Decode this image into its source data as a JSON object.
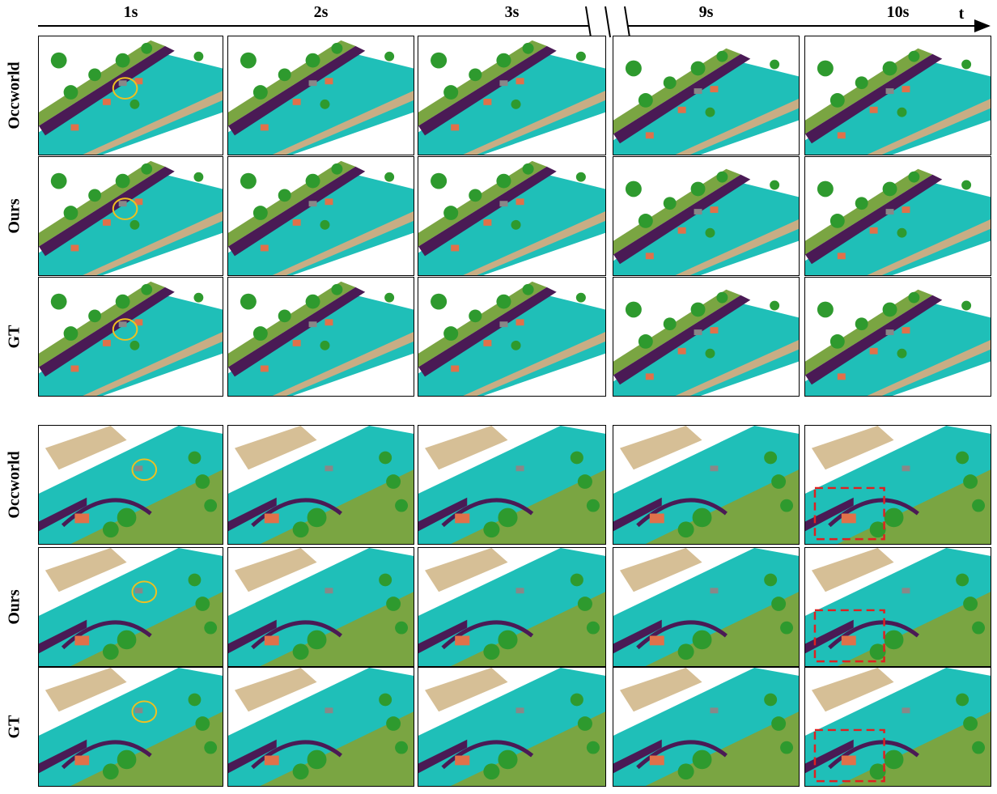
{
  "header": {
    "times": [
      "1s",
      "2s",
      "3s",
      "9s",
      "10s"
    ],
    "axis_label": "t"
  },
  "groups": [
    {
      "rows": [
        "Occworld",
        "Ours",
        "GT"
      ]
    },
    {
      "rows": [
        "Occworld",
        "Ours",
        "GT"
      ]
    }
  ]
}
